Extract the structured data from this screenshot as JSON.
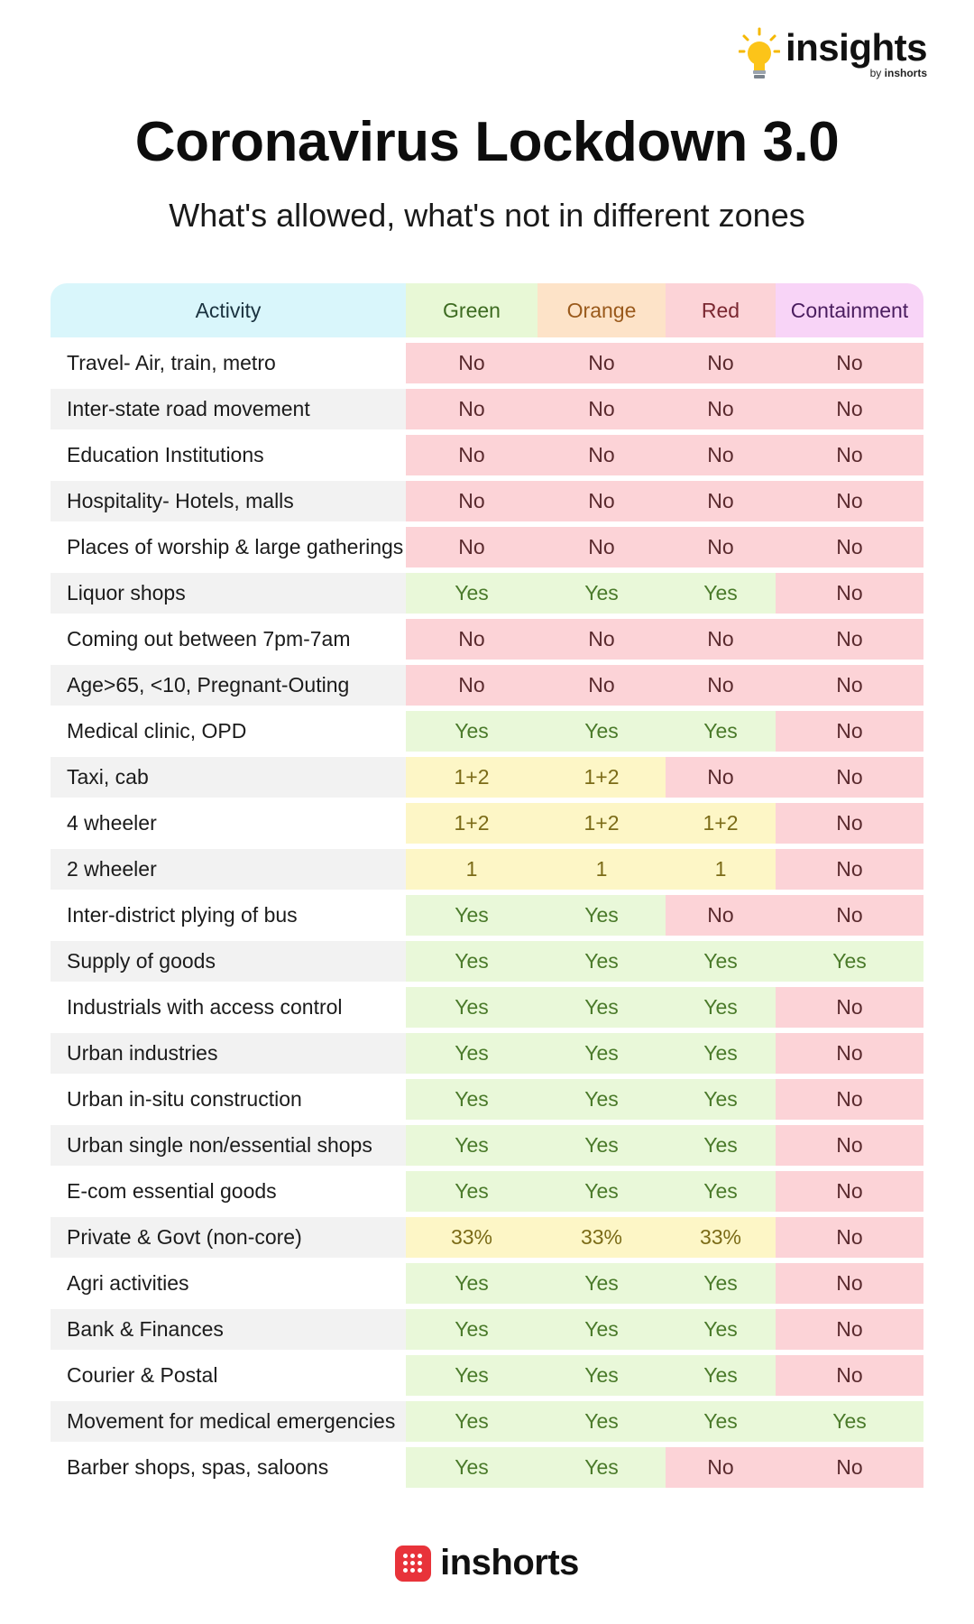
{
  "brand": {
    "name": "insights",
    "by_prefix": "by",
    "by_name": "inshorts",
    "icon": "lightbulb-icon"
  },
  "title": "Coronavirus Lockdown 3.0",
  "subtitle": "What's allowed, what's not in different zones",
  "table": {
    "headers": [
      "Activity",
      "Green",
      "Orange",
      "Red",
      "Containment"
    ],
    "rows": [
      [
        "Travel- Air, train, metro",
        "No",
        "No",
        "No",
        "No"
      ],
      [
        "Inter-state road movement",
        "No",
        "No",
        "No",
        "No"
      ],
      [
        "Education Institutions",
        "No",
        "No",
        "No",
        "No"
      ],
      [
        "Hospitality- Hotels, malls",
        "No",
        "No",
        "No",
        "No"
      ],
      [
        "Places of worship & large gatherings",
        "No",
        "No",
        "No",
        "No"
      ],
      [
        "Liquor shops",
        "Yes",
        "Yes",
        "Yes",
        "No"
      ],
      [
        "Coming out between 7pm-7am",
        "No",
        "No",
        "No",
        "No"
      ],
      [
        "Age>65, <10, Pregnant-Outing",
        "No",
        "No",
        "No",
        "No"
      ],
      [
        "Medical clinic, OPD",
        "Yes",
        "Yes",
        "Yes",
        "No"
      ],
      [
        "Taxi, cab",
        "1+2",
        "1+2",
        "No",
        "No"
      ],
      [
        "4 wheeler",
        "1+2",
        "1+2",
        "1+2",
        "No"
      ],
      [
        "2 wheeler",
        "1",
        "1",
        "1",
        "No"
      ],
      [
        "Inter-district plying of bus",
        "Yes",
        "Yes",
        "No",
        "No"
      ],
      [
        "Supply of goods",
        "Yes",
        "Yes",
        "Yes",
        "Yes"
      ],
      [
        "Industrials with access control",
        "Yes",
        "Yes",
        "Yes",
        "No"
      ],
      [
        "Urban industries",
        "Yes",
        "Yes",
        "Yes",
        "No"
      ],
      [
        "Urban in-situ construction",
        "Yes",
        "Yes",
        "Yes",
        "No"
      ],
      [
        "Urban single non/essential shops",
        "Yes",
        "Yes",
        "Yes",
        "No"
      ],
      [
        "E-com essential goods",
        "Yes",
        "Yes",
        "Yes",
        "No"
      ],
      [
        "Private & Govt (non-core)",
        "33%",
        "33%",
        "33%",
        "No"
      ],
      [
        "Agri activities",
        "Yes",
        "Yes",
        "Yes",
        "No"
      ],
      [
        "Bank & Finances",
        "Yes",
        "Yes",
        "Yes",
        "No"
      ],
      [
        "Courier & Postal",
        "Yes",
        "Yes",
        "Yes",
        "No"
      ],
      [
        "Movement for medical emergencies",
        "Yes",
        "Yes",
        "Yes",
        "Yes"
      ],
      [
        "Barber shops, spas, saloons",
        "Yes",
        "Yes",
        "No",
        "No"
      ]
    ]
  },
  "colors": {
    "no": "#fcd3d7",
    "yes": "#e9f8d9",
    "partial": "#fdf6c6",
    "accent_red": "#e8333a"
  },
  "footer": {
    "name": "inshorts",
    "icon": "inshorts-logo-icon"
  }
}
